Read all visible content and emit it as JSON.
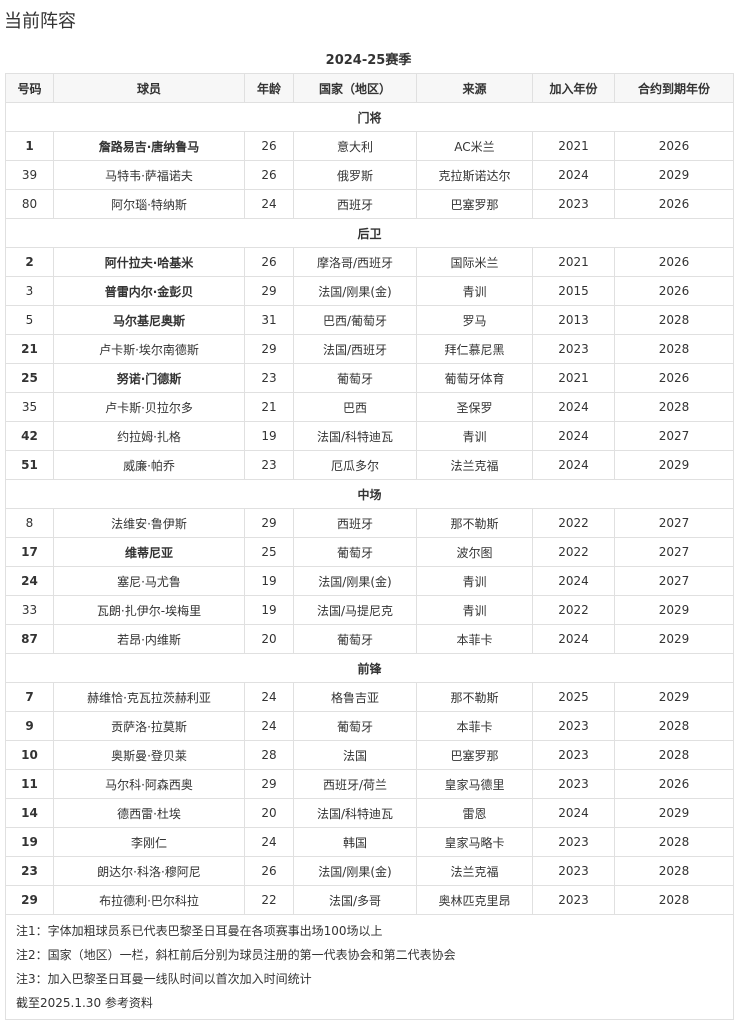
{
  "title": "当前阵容",
  "caption": "2024-25赛季",
  "headers": [
    "号码",
    "球员",
    "年龄",
    "国家（地区）",
    "来源",
    "加入年份",
    "合约到期年份"
  ],
  "sections": [
    {
      "name": "门将",
      "players": [
        {
          "no": "1",
          "name": "詹路易吉·唐纳鲁马",
          "age": "26",
          "nation": "意大利",
          "from": "AC米兰",
          "joined": "2021",
          "until": "2026",
          "bold": true,
          "no_bold": true
        },
        {
          "no": "39",
          "name": "马特韦·萨福诺夫",
          "age": "26",
          "nation": "俄罗斯",
          "from": "克拉斯诺达尔",
          "joined": "2024",
          "until": "2029",
          "bold": false,
          "no_bold": false
        },
        {
          "no": "80",
          "name": "阿尔瑙·特纳斯",
          "age": "24",
          "nation": "西班牙",
          "from": "巴塞罗那",
          "joined": "2023",
          "until": "2026",
          "bold": false,
          "no_bold": false
        }
      ]
    },
    {
      "name": "后卫",
      "players": [
        {
          "no": "2",
          "name": "阿什拉夫·哈基米",
          "age": "26",
          "nation": "摩洛哥/西班牙",
          "from": "国际米兰",
          "joined": "2021",
          "until": "2026",
          "bold": true,
          "no_bold": true
        },
        {
          "no": "3",
          "name": "普雷内尔·金彭贝",
          "age": "29",
          "nation": "法国/刚果(金)",
          "from": "青训",
          "joined": "2015",
          "until": "2026",
          "bold": true,
          "no_bold": false
        },
        {
          "no": "5",
          "name": "马尔基尼奥斯",
          "age": "31",
          "nation": "巴西/葡萄牙",
          "from": "罗马",
          "joined": "2013",
          "until": "2028",
          "bold": true,
          "no_bold": false
        },
        {
          "no": "21",
          "name": "卢卡斯·埃尔南德斯",
          "age": "29",
          "nation": "法国/西班牙",
          "from": "拜仁慕尼黑",
          "joined": "2023",
          "until": "2028",
          "bold": false,
          "no_bold": true
        },
        {
          "no": "25",
          "name": "努诺·门德斯",
          "age": "23",
          "nation": "葡萄牙",
          "from": "葡萄牙体育",
          "joined": "2021",
          "until": "2026",
          "bold": true,
          "no_bold": true
        },
        {
          "no": "35",
          "name": "卢卡斯·贝拉尔多",
          "age": "21",
          "nation": "巴西",
          "from": "圣保罗",
          "joined": "2024",
          "until": "2028",
          "bold": false,
          "no_bold": false
        },
        {
          "no": "42",
          "name": "约拉姆·扎格",
          "age": "19",
          "nation": "法国/科特迪瓦",
          "from": "青训",
          "joined": "2024",
          "until": "2027",
          "bold": false,
          "no_bold": true
        },
        {
          "no": "51",
          "name": "威廉·帕乔",
          "age": "23",
          "nation": "厄瓜多尔",
          "from": "法兰克福",
          "joined": "2024",
          "until": "2029",
          "bold": false,
          "no_bold": true
        }
      ]
    },
    {
      "name": "中场",
      "players": [
        {
          "no": "8",
          "name": "法维安·鲁伊斯",
          "age": "29",
          "nation": "西班牙",
          "from": "那不勒斯",
          "joined": "2022",
          "until": "2027",
          "bold": false,
          "no_bold": false
        },
        {
          "no": "17",
          "name": "维蒂尼亚",
          "age": "25",
          "nation": "葡萄牙",
          "from": "波尔图",
          "joined": "2022",
          "until": "2027",
          "bold": true,
          "no_bold": true
        },
        {
          "no": "24",
          "name": "塞尼·马尤鲁",
          "age": "19",
          "nation": "法国/刚果(金)",
          "from": "青训",
          "joined": "2024",
          "until": "2027",
          "bold": false,
          "no_bold": true
        },
        {
          "no": "33",
          "name": "瓦朗·扎伊尔-埃梅里",
          "age": "19",
          "nation": "法国/马提尼克",
          "from": "青训",
          "joined": "2022",
          "until": "2029",
          "bold": false,
          "no_bold": false
        },
        {
          "no": "87",
          "name": "若昂·内维斯",
          "age": "20",
          "nation": "葡萄牙",
          "from": "本菲卡",
          "joined": "2024",
          "until": "2029",
          "bold": false,
          "no_bold": true
        }
      ]
    },
    {
      "name": "前锋",
      "players": [
        {
          "no": "7",
          "name": "赫维恰·克瓦拉茨赫利亚",
          "age": "24",
          "nation": "格鲁吉亚",
          "from": "那不勒斯",
          "joined": "2025",
          "until": "2029",
          "bold": false,
          "no_bold": true
        },
        {
          "no": "9",
          "name": "贡萨洛·拉莫斯",
          "age": "24",
          "nation": "葡萄牙",
          "from": "本菲卡",
          "joined": "2023",
          "until": "2028",
          "bold": false,
          "no_bold": true
        },
        {
          "no": "10",
          "name": "奥斯曼·登贝莱",
          "age": "28",
          "nation": "法国",
          "from": "巴塞罗那",
          "joined": "2023",
          "until": "2028",
          "bold": false,
          "no_bold": true
        },
        {
          "no": "11",
          "name": "马尔科·阿森西奥",
          "age": "29",
          "nation": "西班牙/荷兰",
          "from": "皇家马德里",
          "joined": "2023",
          "until": "2026",
          "bold": false,
          "no_bold": true
        },
        {
          "no": "14",
          "name": "德西雷·杜埃",
          "age": "20",
          "nation": "法国/科特迪瓦",
          "from": "雷恩",
          "joined": "2024",
          "until": "2029",
          "bold": false,
          "no_bold": true
        },
        {
          "no": "19",
          "name": "李刚仁",
          "age": "24",
          "nation": "韩国",
          "from": "皇家马略卡",
          "joined": "2023",
          "until": "2028",
          "bold": false,
          "no_bold": true
        },
        {
          "no": "23",
          "name": "朗达尔·科洛·穆阿尼",
          "age": "26",
          "nation": "法国/刚果(金)",
          "from": "法兰克福",
          "joined": "2023",
          "until": "2028",
          "bold": false,
          "no_bold": true
        },
        {
          "no": "29",
          "name": "布拉德利·巴尔科拉",
          "age": "22",
          "nation": "法国/多哥",
          "from": "奥林匹克里昂",
          "joined": "2023",
          "until": "2028",
          "bold": false,
          "no_bold": true
        }
      ]
    }
  ],
  "notes": [
    "注1：字体加粗球员系已代表巴黎圣日耳曼在各项赛事出场100场以上",
    "注2：国家（地区）一栏，斜杠前后分别为球员注册的第一代表协会和第二代表协会",
    "注3：加入巴黎圣日耳曼一线队时间以首次加入时间统计",
    "截至2025.1.30 参考资料"
  ]
}
